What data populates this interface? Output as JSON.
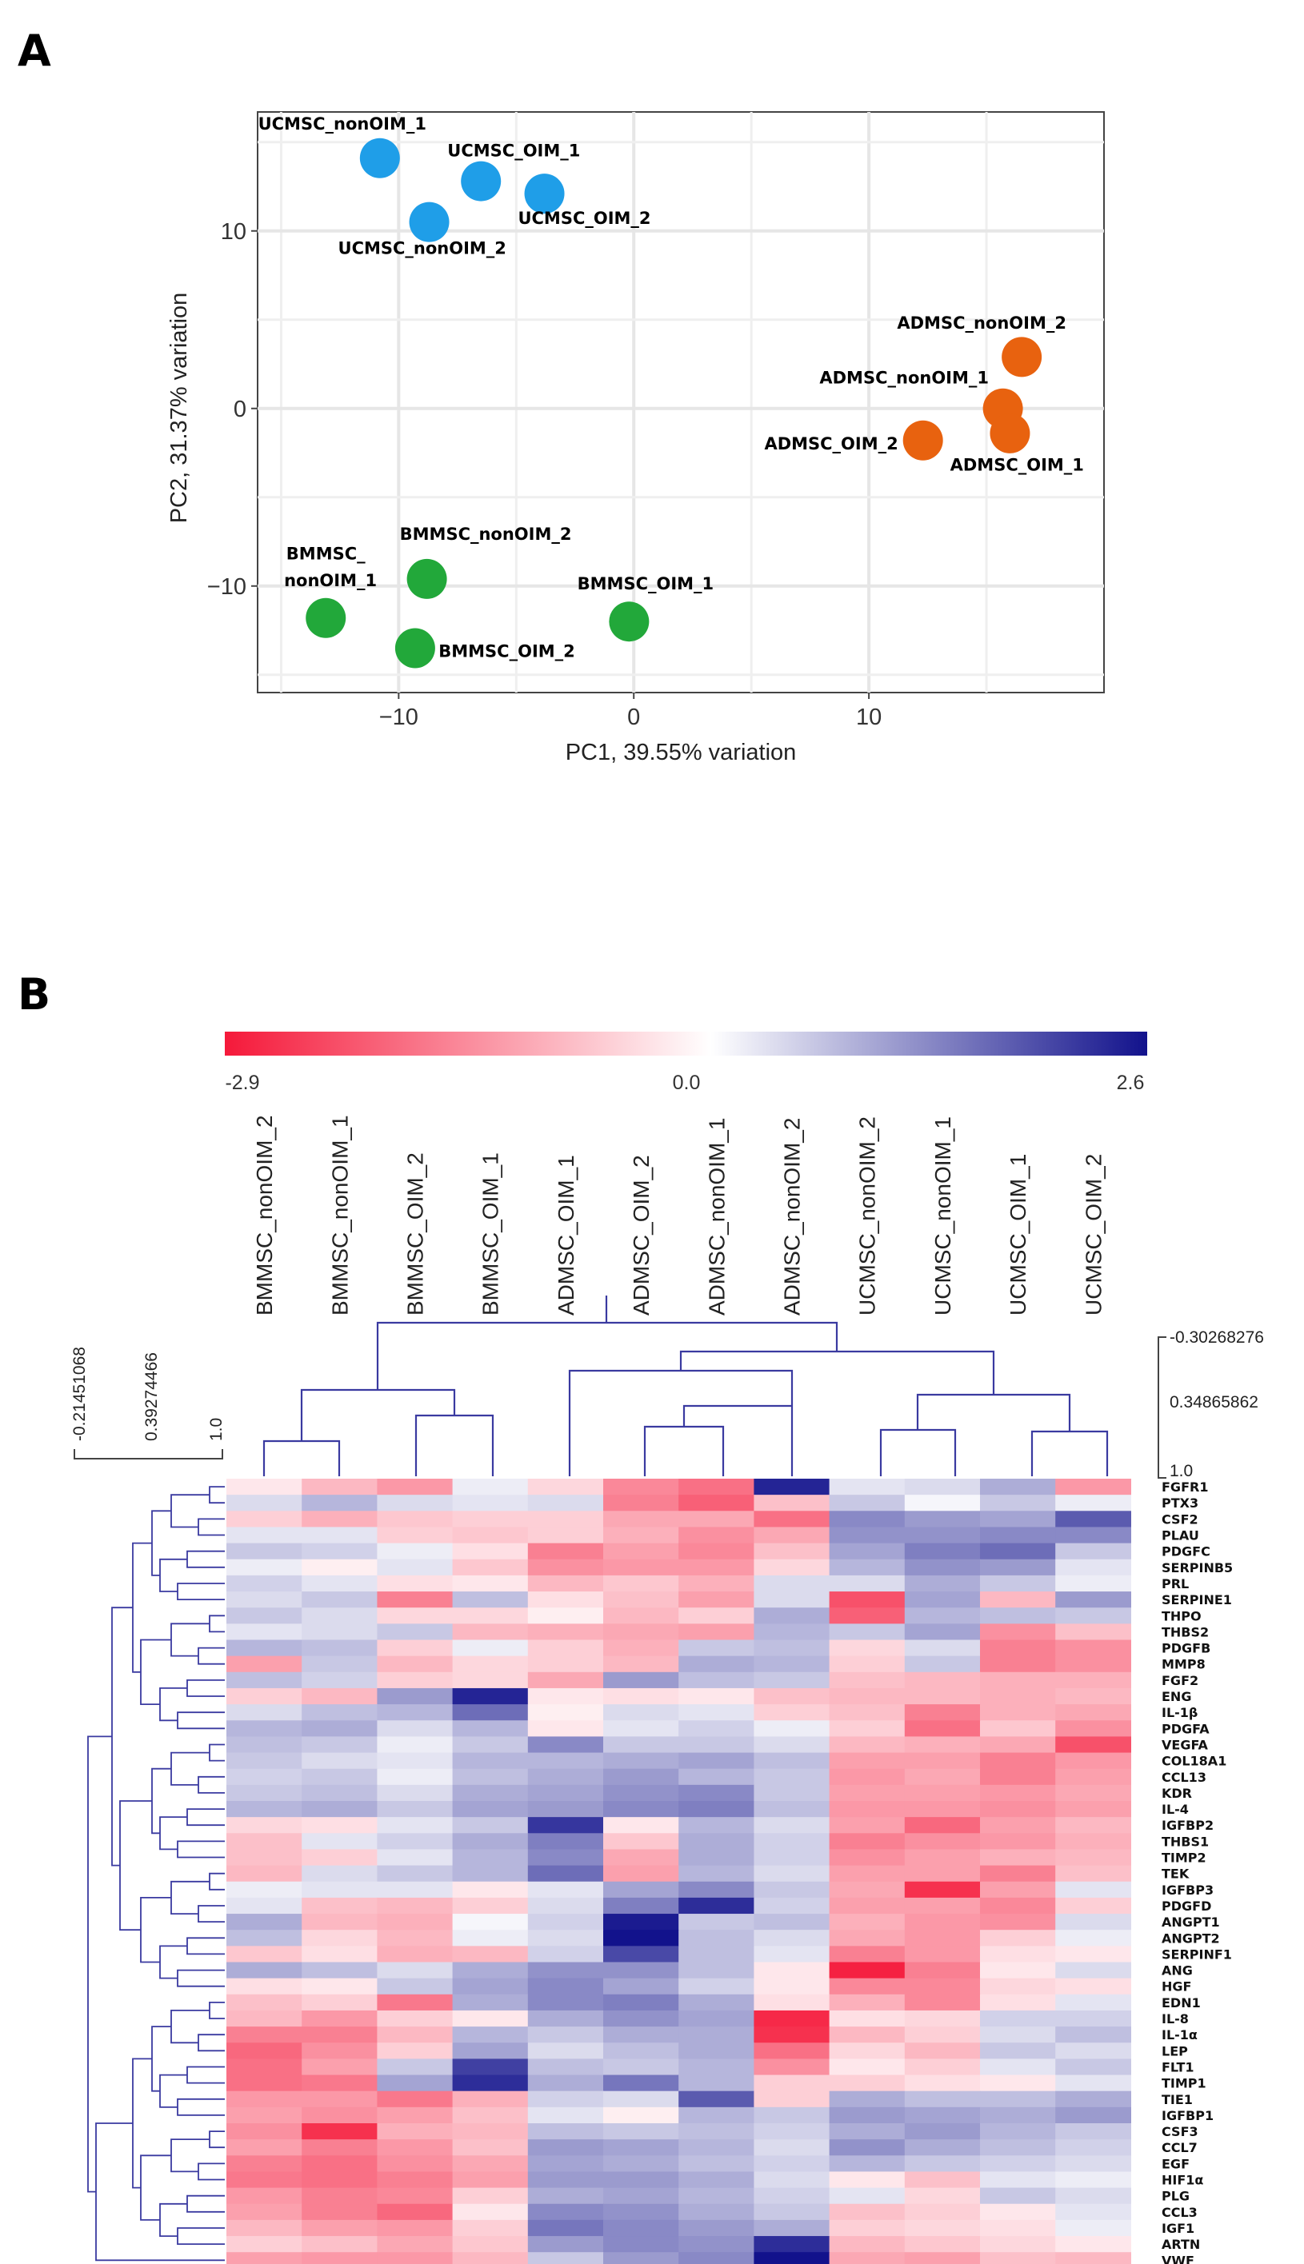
{
  "panel_a": {
    "letter": "A",
    "colors": {
      "UCMSC": "#1f9ee8",
      "ADMSC": "#e8620f",
      "BMMSC": "#22a83a"
    },
    "chart_data": {
      "type": "scatter",
      "xlabel": "PC1, 39.55% variation",
      "ylabel": "PC2, 31.37% variation",
      "xlim": [
        -16,
        20
      ],
      "ylim": [
        -16,
        16.7
      ],
      "xticks": [
        -10,
        0,
        10
      ],
      "yticks": [
        -10,
        0,
        10
      ],
      "xtick_labels": [
        "−10",
        "0",
        "10"
      ],
      "ytick_labels": [
        "−10",
        "0",
        "10"
      ],
      "grid": true,
      "points": [
        {
          "name": "UCMSC_nonOIM_1",
          "group": "UCMSC",
          "x": -10.8,
          "y": 14.1
        },
        {
          "name": "UCMSC_OIM_1",
          "group": "UCMSC",
          "x": -6.5,
          "y": 12.8
        },
        {
          "name": "UCMSC_OIM_2",
          "group": "UCMSC",
          "x": -3.8,
          "y": 12.1
        },
        {
          "name": "UCMSC_nonOIM_2",
          "group": "UCMSC",
          "x": -8.7,
          "y": 10.5
        },
        {
          "name": "ADMSC_nonOIM_2",
          "group": "ADMSC",
          "x": 16.5,
          "y": 2.9
        },
        {
          "name": "ADMSC_nonOIM_1",
          "group": "ADMSC",
          "x": 15.7,
          "y": 0.0
        },
        {
          "name": "ADMSC_OIM_1",
          "group": "ADMSC",
          "x": 16.0,
          "y": -1.4
        },
        {
          "name": "ADMSC_OIM_2",
          "group": "ADMSC",
          "x": 12.3,
          "y": -1.8
        },
        {
          "name": "BMMSC_nonOIM_2",
          "group": "BMMSC",
          "x": -8.8,
          "y": -9.6
        },
        {
          "name": "BMMSC_nonOIM_1",
          "group": "BMMSC",
          "x": -13.1,
          "y": -11.8
        },
        {
          "name": "BMMSC_OIM_1",
          "group": "BMMSC",
          "x": -0.2,
          "y": -12.0
        },
        {
          "name": "BMMSC_OIM_2",
          "group": "BMMSC",
          "x": -9.3,
          "y": -13.5
        }
      ],
      "point_labels": [
        {
          "text": "UCMSC_nonOIM_1",
          "x": -12.4,
          "y": 15.7,
          "anchor": "middle"
        },
        {
          "text": "UCMSC_OIM_1",
          "x": -5.1,
          "y": 14.2,
          "anchor": "middle"
        },
        {
          "text": "UCMSC_OIM_2",
          "x": -2.1,
          "y": 10.4,
          "anchor": "middle"
        },
        {
          "text": "UCMSC_nonOIM_2",
          "x": -9.0,
          "y": 8.7,
          "anchor": "middle"
        },
        {
          "text": "ADMSC_nonOIM_2",
          "x": 14.8,
          "y": 4.5,
          "anchor": "middle"
        },
        {
          "text": "ADMSC_nonOIM_1",
          "x": 11.5,
          "y": 1.4,
          "anchor": "middle"
        },
        {
          "text": "ADMSC_OIM_1",
          "x": 16.3,
          "y": -3.5,
          "anchor": "middle"
        },
        {
          "text": "ADMSC_OIM_2",
          "x": 8.4,
          "y": -2.3,
          "anchor": "middle"
        },
        {
          "text": "BMMSC_nonOIM_2",
          "x": -6.3,
          "y": -7.4,
          "anchor": "middle"
        },
        {
          "text": "BMMSC_",
          "x": -13.1,
          "y": -8.5,
          "anchor": "middle"
        },
        {
          "text": "nonOIM_1",
          "x": -12.9,
          "y": -10.0,
          "anchor": "middle"
        },
        {
          "text": "BMMSC_OIM_1",
          "x": 0.5,
          "y": -10.2,
          "anchor": "middle"
        },
        {
          "text": "BMMSC_OIM_2",
          "x": -5.4,
          "y": -14.0,
          "anchor": "middle"
        }
      ]
    }
  },
  "panel_b": {
    "letter": "B",
    "colorbar": {
      "min_label": "-2.9",
      "mid_label": "0.0",
      "max_label": "2.6",
      "min_color": "#f5193a",
      "mid_color": "#ffffff",
      "max_color": "#12128c"
    },
    "col_scale_labels": [
      "-0.30268276",
      "0.34865862",
      "1.0"
    ],
    "row_scale_labels": [
      "-0.21451068",
      "0.39274466",
      "1.0"
    ],
    "chart_data": {
      "type": "heatmap",
      "vmin": -2.9,
      "vmax": 2.6,
      "columns": [
        "BMMSC_nonOIM_2",
        "BMMSC_nonOIM_1",
        "BMMSC_OIM_2",
        "BMMSC_OIM_1",
        "ADMSC_OIM_1",
        "ADMSC_OIM_2",
        "ADMSC_nonOIM_1",
        "ADMSC_nonOIM_2",
        "UCMSC_nonOIM_2",
        "UCMSC_nonOIM_1",
        "UCMSC_OIM_1",
        "UCMSC_OIM_2"
      ],
      "rows": [
        "FGFR1",
        "PTX3",
        "CSF2",
        "PLAU",
        "PDGFC",
        "SERPINB5",
        "PRL",
        "SERPINE1",
        "THPO",
        "THBS2",
        "PDGFB",
        "MMP8",
        "FGF2",
        "ENG",
        "IL-1β",
        "PDGFA",
        "VEGFA",
        "COL18A1",
        "CCL13",
        "KDR",
        "IL-4",
        "IGFBP2",
        "THBS1",
        "TIMP2",
        "TEK",
        "IGFBP3",
        "PDGFD",
        "ANGPT1",
        "ANGPT2",
        "SERPINF1",
        "ANG",
        "HGF",
        "EDN1",
        "IL-8",
        "IL-1α",
        "LEP",
        "FLT1",
        "TIMP1",
        "TIE1",
        "IGFBP1",
        "CSF3",
        "CCL7",
        "EGF",
        "HIF1α",
        "PLG",
        "CCL3",
        "IGF1",
        "ARTN",
        "VWF"
      ],
      "values": [
        [
          -0.3,
          -0.9,
          -1.3,
          0.2,
          -0.5,
          -1.5,
          -1.8,
          2.4,
          0.3,
          0.4,
          0.9,
          -1.3
        ],
        [
          0.4,
          0.8,
          0.4,
          0.3,
          0.4,
          -1.6,
          -2.0,
          -0.8,
          0.6,
          0.1,
          0.6,
          0.2
        ],
        [
          -0.6,
          -1.0,
          -0.7,
          -0.6,
          -0.6,
          -1.1,
          -1.1,
          -1.8,
          1.3,
          1.1,
          1.0,
          1.8
        ],
        [
          0.3,
          0.3,
          -0.6,
          -0.7,
          -0.6,
          -1.0,
          -1.4,
          -1.1,
          1.2,
          1.2,
          1.3,
          1.3
        ],
        [
          0.6,
          0.5,
          0.2,
          -0.4,
          -1.6,
          -1.2,
          -1.5,
          -0.8,
          1.0,
          1.4,
          1.6,
          0.6
        ],
        [
          0.2,
          -0.2,
          0.3,
          -0.7,
          -1.4,
          -1.3,
          -1.3,
          -0.5,
          0.8,
          1.2,
          1.1,
          0.3
        ],
        [
          0.5,
          0.3,
          -0.4,
          -0.3,
          -0.9,
          -0.7,
          -1.0,
          0.4,
          0.4,
          0.9,
          0.6,
          0.2
        ],
        [
          0.4,
          0.6,
          -1.6,
          0.7,
          -0.4,
          -0.8,
          -1.2,
          0.4,
          -2.2,
          1.0,
          -0.9,
          1.1
        ],
        [
          0.6,
          0.4,
          -0.5,
          -0.5,
          -0.2,
          -0.9,
          -0.6,
          0.9,
          -2.0,
          0.8,
          0.7,
          0.6
        ],
        [
          0.3,
          0.4,
          0.6,
          -0.9,
          -1.0,
          -1.1,
          -1.2,
          0.8,
          0.6,
          1.0,
          -1.4,
          -0.8
        ],
        [
          0.8,
          0.7,
          -0.6,
          0.2,
          -0.6,
          -1.0,
          0.6,
          0.7,
          -0.5,
          0.4,
          -1.6,
          -1.4
        ],
        [
          -1.2,
          0.6,
          -0.9,
          -0.5,
          -0.6,
          -0.9,
          0.9,
          0.8,
          -0.6,
          0.6,
          -1.6,
          -1.4
        ],
        [
          0.7,
          0.5,
          -0.6,
          -0.5,
          -1.1,
          1.1,
          0.7,
          0.6,
          -0.8,
          -0.9,
          -1.0,
          -1.0
        ],
        [
          -0.6,
          -0.9,
          1.1,
          2.4,
          -0.3,
          -0.4,
          -0.3,
          -0.8,
          -0.9,
          -0.9,
          -1.0,
          -0.9
        ],
        [
          0.4,
          0.7,
          0.8,
          1.6,
          -0.2,
          0.4,
          0.3,
          -0.6,
          -0.8,
          -1.6,
          -1.0,
          -1.1
        ],
        [
          0.8,
          0.9,
          0.4,
          0.8,
          -0.3,
          0.3,
          0.5,
          0.2,
          -0.6,
          -1.8,
          -0.7,
          -1.4
        ],
        [
          0.7,
          0.6,
          0.2,
          0.6,
          1.3,
          0.6,
          0.6,
          0.4,
          -0.9,
          -1.0,
          -1.1,
          -2.2
        ],
        [
          0.6,
          0.4,
          0.3,
          0.8,
          0.8,
          0.9,
          1.0,
          0.7,
          -1.2,
          -1.2,
          -1.6,
          -1.3
        ],
        [
          0.5,
          0.6,
          0.2,
          0.7,
          0.9,
          1.1,
          0.8,
          0.6,
          -1.3,
          -1.1,
          -1.6,
          -1.2
        ],
        [
          0.6,
          0.7,
          0.4,
          0.9,
          1.0,
          1.2,
          1.3,
          0.6,
          -1.2,
          -1.2,
          -1.3,
          -1.1
        ],
        [
          0.8,
          0.9,
          0.6,
          1.0,
          1.1,
          1.3,
          1.4,
          0.7,
          -1.3,
          -1.3,
          -1.4,
          -1.2
        ],
        [
          -0.5,
          -0.4,
          0.3,
          0.6,
          2.2,
          -0.3,
          0.8,
          0.4,
          -1.2,
          -1.9,
          -1.2,
          -0.9
        ],
        [
          -0.8,
          0.3,
          0.5,
          0.9,
          1.4,
          -0.7,
          0.9,
          0.5,
          -1.6,
          -1.4,
          -1.3,
          -1.0
        ],
        [
          -0.8,
          -0.6,
          0.3,
          0.8,
          1.3,
          -1.1,
          0.9,
          0.5,
          -1.4,
          -1.2,
          -1.0,
          -0.9
        ],
        [
          -0.9,
          0.4,
          0.6,
          0.8,
          1.6,
          -1.2,
          0.8,
          0.4,
          -1.2,
          -1.2,
          -1.6,
          -0.8
        ],
        [
          0.2,
          0.3,
          0.3,
          -0.3,
          0.3,
          1.0,
          1.3,
          0.6,
          -1.1,
          -2.6,
          -1.2,
          0.3
        ],
        [
          0.3,
          -0.8,
          -0.9,
          -0.6,
          0.4,
          1.4,
          2.3,
          0.5,
          -1.2,
          -1.2,
          -1.5,
          -0.6
        ],
        [
          0.9,
          -0.9,
          -1.0,
          0.1,
          0.5,
          2.5,
          0.6,
          0.7,
          -1.0,
          -1.3,
          -1.4,
          0.4
        ],
        [
          0.7,
          -0.5,
          -0.9,
          0.2,
          0.4,
          2.6,
          0.7,
          0.4,
          -1.1,
          -1.3,
          -0.6,
          0.2
        ],
        [
          -0.7,
          -0.4,
          -1.0,
          -0.9,
          0.5,
          2.0,
          0.7,
          0.3,
          -1.6,
          -1.3,
          -0.4,
          -0.3
        ],
        [
          0.9,
          0.7,
          0.4,
          0.9,
          1.2,
          1.2,
          0.7,
          -0.3,
          -2.8,
          -1.6,
          -0.3,
          0.4
        ],
        [
          -0.4,
          -0.3,
          0.6,
          1.0,
          1.3,
          1.0,
          0.5,
          -0.3,
          -1.5,
          -1.5,
          -0.5,
          -0.4
        ],
        [
          -0.8,
          -0.6,
          -1.7,
          0.9,
          1.3,
          1.4,
          0.9,
          -0.4,
          -1.0,
          -1.5,
          -0.4,
          0.3
        ],
        [
          -0.9,
          -1.3,
          -0.6,
          -0.3,
          0.9,
          1.2,
          1.0,
          -2.7,
          -0.4,
          -0.5,
          0.5,
          0.5
        ],
        [
          -1.6,
          -1.6,
          -0.9,
          0.8,
          0.6,
          0.9,
          0.9,
          -2.6,
          -0.9,
          -0.6,
          0.4,
          0.7
        ],
        [
          -1.9,
          -1.4,
          -0.6,
          1.0,
          0.4,
          0.7,
          0.9,
          -1.8,
          -0.5,
          -0.9,
          0.6,
          0.4
        ],
        [
          -1.8,
          -1.2,
          0.6,
          2.1,
          0.7,
          0.6,
          0.8,
          -1.4,
          -0.3,
          -0.6,
          0.3,
          0.6
        ],
        [
          -1.8,
          -1.7,
          1.0,
          2.3,
          0.9,
          1.5,
          0.8,
          -0.6,
          -0.6,
          -0.4,
          -0.3,
          0.3
        ],
        [
          -1.3,
          -1.3,
          -1.7,
          -1.0,
          0.5,
          0.4,
          1.8,
          -0.6,
          0.9,
          0.7,
          0.7,
          0.9
        ],
        [
          -1.2,
          -1.4,
          -1.2,
          -0.8,
          0.3,
          -0.2,
          0.8,
          0.6,
          1.1,
          1.0,
          0.9,
          1.1
        ],
        [
          -1.4,
          -2.6,
          -1.0,
          -0.9,
          0.7,
          0.6,
          0.7,
          0.5,
          0.9,
          1.1,
          0.8,
          0.6
        ],
        [
          -1.2,
          -1.6,
          -1.3,
          -0.8,
          1.1,
          1.0,
          0.8,
          0.4,
          1.2,
          0.9,
          0.7,
          0.5
        ],
        [
          -1.6,
          -1.8,
          -1.4,
          -1.1,
          1.0,
          0.9,
          0.7,
          0.5,
          0.8,
          0.6,
          0.5,
          0.4
        ],
        [
          -1.7,
          -1.8,
          -1.6,
          -1.2,
          1.1,
          1.1,
          0.9,
          0.4,
          -0.3,
          -0.8,
          0.3,
          0.2
        ],
        [
          -1.3,
          -1.6,
          -1.5,
          -0.6,
          0.9,
          1.0,
          0.8,
          0.5,
          0.3,
          -0.5,
          0.6,
          0.4
        ],
        [
          -1.2,
          -1.6,
          -1.9,
          -0.3,
          1.3,
          1.2,
          0.9,
          0.6,
          -0.8,
          -0.6,
          -0.3,
          0.3
        ],
        [
          -0.9,
          -1.2,
          -1.3,
          -0.6,
          1.5,
          1.3,
          1.1,
          0.9,
          -0.6,
          -0.5,
          -0.4,
          0.2
        ],
        [
          -0.6,
          -0.8,
          -1.1,
          -0.7,
          1.1,
          1.3,
          1.2,
          2.3,
          -0.9,
          -0.7,
          -0.5,
          -0.3
        ],
        [
          -1.2,
          -1.3,
          -1.3,
          -0.9,
          0.6,
          1.1,
          1.3,
          2.6,
          -1.1,
          -1.2,
          -0.8,
          -0.9
        ]
      ]
    }
  }
}
